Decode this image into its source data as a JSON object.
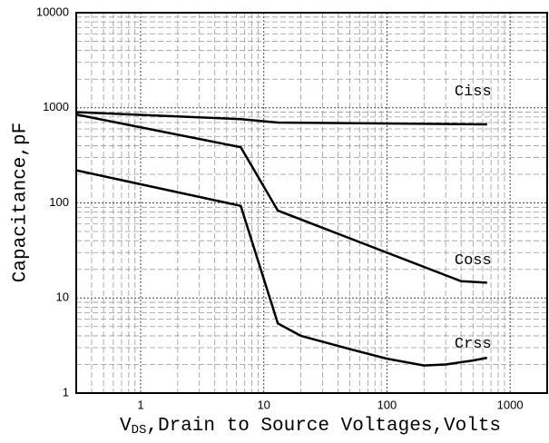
{
  "chart_data": {
    "type": "line",
    "x_label": "V",
    "x_label_sub": "DS",
    "x_label_rest": ",Drain to Source Voltages,Volts",
    "y_label": "Capacitance,pF",
    "xlim": [
      0.3,
      2000
    ],
    "ylim": [
      1,
      10000
    ],
    "xticks": [
      1,
      10,
      100,
      1000
    ],
    "yticks": [
      1,
      10,
      100,
      1000,
      10000
    ],
    "log_x": true,
    "log_y": true,
    "grid": true,
    "minor_grid": true,
    "series": [
      {
        "name": "Ciss",
        "color": "#000000",
        "x": [
          0.3,
          6.5,
          13,
          650
        ],
        "values": [
          900,
          760,
          700,
          670
        ]
      },
      {
        "name": "Coss",
        "color": "#000000",
        "x": [
          0.3,
          6.5,
          13,
          400,
          650
        ],
        "values": [
          850,
          385,
          83,
          15,
          14.5
        ]
      },
      {
        "name": "Crss",
        "color": "#000000",
        "x": [
          0.3,
          6.5,
          13,
          20,
          50,
          100,
          200,
          300,
          500,
          650
        ],
        "values": [
          220,
          93,
          5.4,
          4,
          2.9,
          2.3,
          1.95,
          2.0,
          2.2,
          2.35
        ]
      }
    ],
    "annotations": [
      {
        "text": "Ciss",
        "x": 500,
        "y": 1500
      },
      {
        "text": "Coss",
        "x": 500,
        "y": 25
      },
      {
        "text": "Crss",
        "x": 500,
        "y": 3.3
      }
    ]
  }
}
